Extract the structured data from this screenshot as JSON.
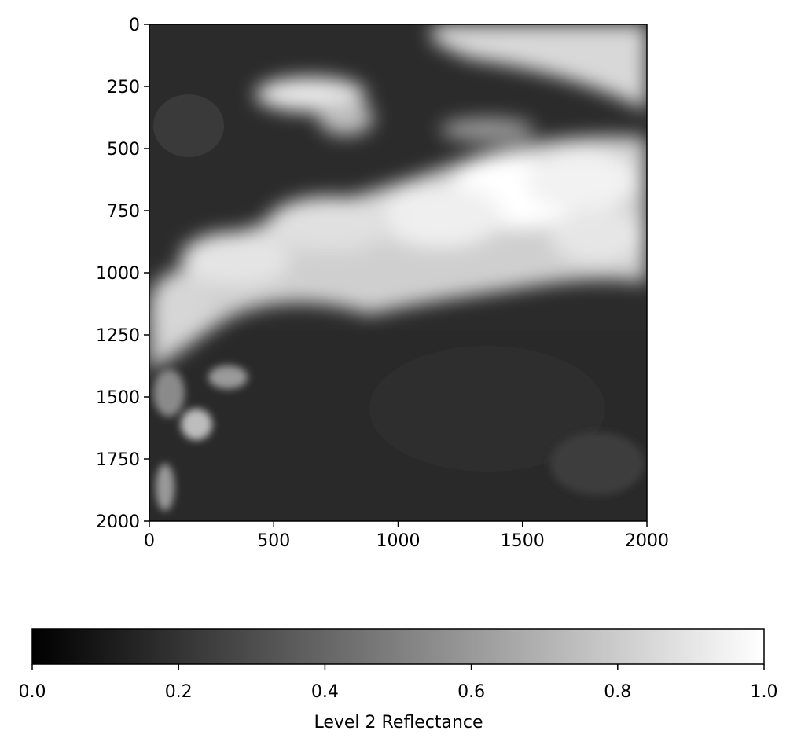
{
  "chart_data": {
    "type": "heatmap",
    "description_colormap": "gray",
    "x_ticks": [
      0,
      500,
      1000,
      1500,
      2000
    ],
    "y_ticks": [
      0,
      250,
      500,
      750,
      1000,
      1250,
      1500,
      1750,
      2000
    ],
    "xlim": [
      0,
      2000
    ],
    "ylim": [
      2000,
      0
    ],
    "colorbar": {
      "label": "Level 2 Reflectance",
      "range": [
        0.0,
        1.0
      ],
      "ticks": [
        "0.0",
        "0.2",
        "0.4",
        "0.6",
        "0.8",
        "1.0"
      ],
      "orientation": "horizontal",
      "colors": [
        "#000000",
        "#ffffff"
      ]
    }
  }
}
